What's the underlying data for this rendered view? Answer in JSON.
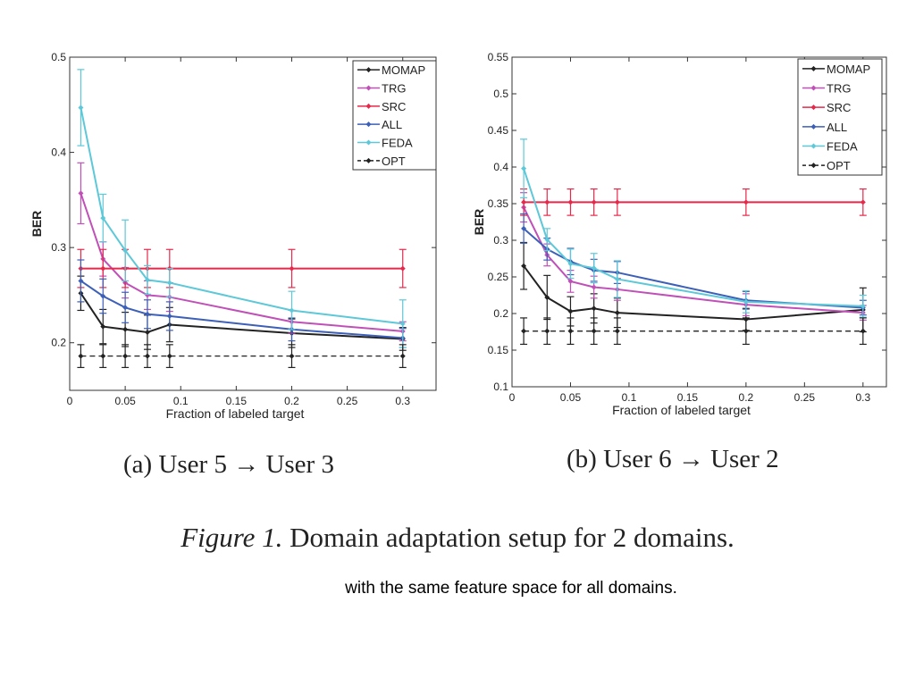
{
  "chart_data": [
    {
      "type": "line",
      "xlabel": "Fraction of labeled target",
      "ylabel": "BER",
      "xlim": [
        0,
        0.33
      ],
      "ylim": [
        0.15,
        0.5
      ],
      "xticks": [
        0,
        0.05,
        0.1,
        0.15,
        0.2,
        0.25,
        0.3
      ],
      "xtick_labels": [
        "0",
        "0.05",
        "0.1",
        "0.15",
        "0.2",
        "0.25",
        "0.3"
      ],
      "yticks": [
        0.2,
        0.3,
        0.4,
        0.5
      ],
      "ytick_labels": [
        "0.2",
        "0.3",
        "0.4",
        "0.5"
      ],
      "legend_position": "top-right",
      "x": [
        0.01,
        0.03,
        0.05,
        0.07,
        0.09,
        0.2,
        0.3
      ],
      "series": [
        {
          "name": "MOMAP",
          "color": "#222222",
          "dashed": false,
          "values": [
            0.252,
            0.217,
            0.214,
            0.211,
            0.219,
            0.21,
            0.204
          ],
          "err": [
            0.018,
            0.018,
            0.018,
            0.018,
            0.018,
            0.015,
            0.012
          ]
        },
        {
          "name": "TRG",
          "color": "#c050b8",
          "dashed": false,
          "values": [
            0.357,
            0.288,
            0.263,
            0.25,
            0.248,
            0.222,
            0.212
          ],
          "err": [
            0.032,
            0.018,
            0.016,
            0.015,
            0.015,
            0.012,
            0.01
          ]
        },
        {
          "name": "SRC",
          "color": "#e8284a",
          "dashed": false,
          "values": [
            0.278,
            0.278,
            0.278,
            0.278,
            0.278,
            0.278,
            0.278
          ],
          "err": [
            0.02,
            0.02,
            0.02,
            0.02,
            0.02,
            0.02,
            0.02
          ]
        },
        {
          "name": "ALL",
          "color": "#3c5fb8",
          "dashed": false,
          "values": [
            0.265,
            0.249,
            0.237,
            0.23,
            0.228,
            0.214,
            0.205
          ],
          "err": [
            0.022,
            0.018,
            0.016,
            0.015,
            0.015,
            0.012,
            0.01
          ]
        },
        {
          "name": "FEDA",
          "color": "#5cc8d8",
          "dashed": false,
          "values": [
            0.447,
            0.331,
            0.297,
            0.266,
            0.263,
            0.234,
            0.22
          ],
          "err": [
            0.04,
            0.025,
            0.032,
            0.015,
            0.015,
            0.02,
            0.025
          ]
        },
        {
          "name": "OPT",
          "color": "#222222",
          "dashed": true,
          "values": [
            0.186,
            0.186,
            0.186,
            0.186,
            0.186,
            0.186,
            0.186
          ],
          "err": [
            0.012,
            0.012,
            0.012,
            0.012,
            0.012,
            0.012,
            0.012
          ]
        }
      ],
      "caption": "(a) User 5 → User 3"
    },
    {
      "type": "line",
      "xlabel": "Fraction of labeled target",
      "ylabel": "BER",
      "xlim": [
        0,
        0.32
      ],
      "ylim": [
        0.1,
        0.55
      ],
      "xticks": [
        0,
        0.05,
        0.1,
        0.15,
        0.2,
        0.25,
        0.3
      ],
      "xtick_labels": [
        "0",
        "0.05",
        "0.1",
        "0.15",
        "0.2",
        "0.25",
        "0.3"
      ],
      "yticks": [
        0.1,
        0.15,
        0.2,
        0.25,
        0.3,
        0.35,
        0.4,
        0.45,
        0.5,
        0.55
      ],
      "ytick_labels": [
        "0.1",
        "0.15",
        "0.2",
        "0.25",
        "0.3",
        "0.35",
        "0.4",
        "0.45",
        "0.5",
        "0.55"
      ],
      "legend_position": "top-right",
      "x": [
        0.01,
        0.03,
        0.05,
        0.07,
        0.09,
        0.2,
        0.3
      ],
      "series": [
        {
          "name": "MOMAP",
          "color": "#222222",
          "dashed": false,
          "values": [
            0.265,
            0.222,
            0.203,
            0.207,
            0.201,
            0.192,
            0.205
          ],
          "err": [
            0.032,
            0.03,
            0.02,
            0.02,
            0.02,
            0.015,
            0.03
          ]
        },
        {
          "name": "TRG",
          "color": "#c050b8",
          "dashed": false,
          "values": [
            0.345,
            0.28,
            0.244,
            0.236,
            0.233,
            0.212,
            0.201
          ],
          "err": [
            0.02,
            0.015,
            0.015,
            0.015,
            0.015,
            0.015,
            0.01
          ]
        },
        {
          "name": "SRC",
          "color": "#e8284a",
          "dashed": false,
          "values": [
            0.352,
            0.352,
            0.352,
            0.352,
            0.352,
            0.352,
            0.352
          ],
          "err": [
            0.018,
            0.018,
            0.018,
            0.018,
            0.018,
            0.018,
            0.018
          ]
        },
        {
          "name": "ALL",
          "color": "#3c5fb8",
          "dashed": false,
          "values": [
            0.316,
            0.288,
            0.271,
            0.259,
            0.256,
            0.218,
            0.208
          ],
          "err": [
            0.02,
            0.015,
            0.018,
            0.015,
            0.015,
            0.012,
            0.01
          ]
        },
        {
          "name": "FEDA",
          "color": "#5cc8d8",
          "dashed": false,
          "values": [
            0.398,
            0.301,
            0.268,
            0.262,
            0.247,
            0.216,
            0.21
          ],
          "err": [
            0.04,
            0.015,
            0.02,
            0.02,
            0.025,
            0.015,
            0.015
          ]
        },
        {
          "name": "OPT",
          "color": "#222222",
          "dashed": true,
          "values": [
            0.176,
            0.176,
            0.176,
            0.176,
            0.176,
            0.176,
            0.176
          ],
          "err": [
            0.018,
            0.018,
            0.018,
            0.018,
            0.018,
            0.018,
            0.018
          ]
        }
      ],
      "caption": "(b) User 6 → User 2"
    }
  ],
  "figure_caption": {
    "label": "Figure 1.",
    "text": "Domain adaptation setup for 2 domains."
  },
  "footnote": "with the same feature space for all domains."
}
